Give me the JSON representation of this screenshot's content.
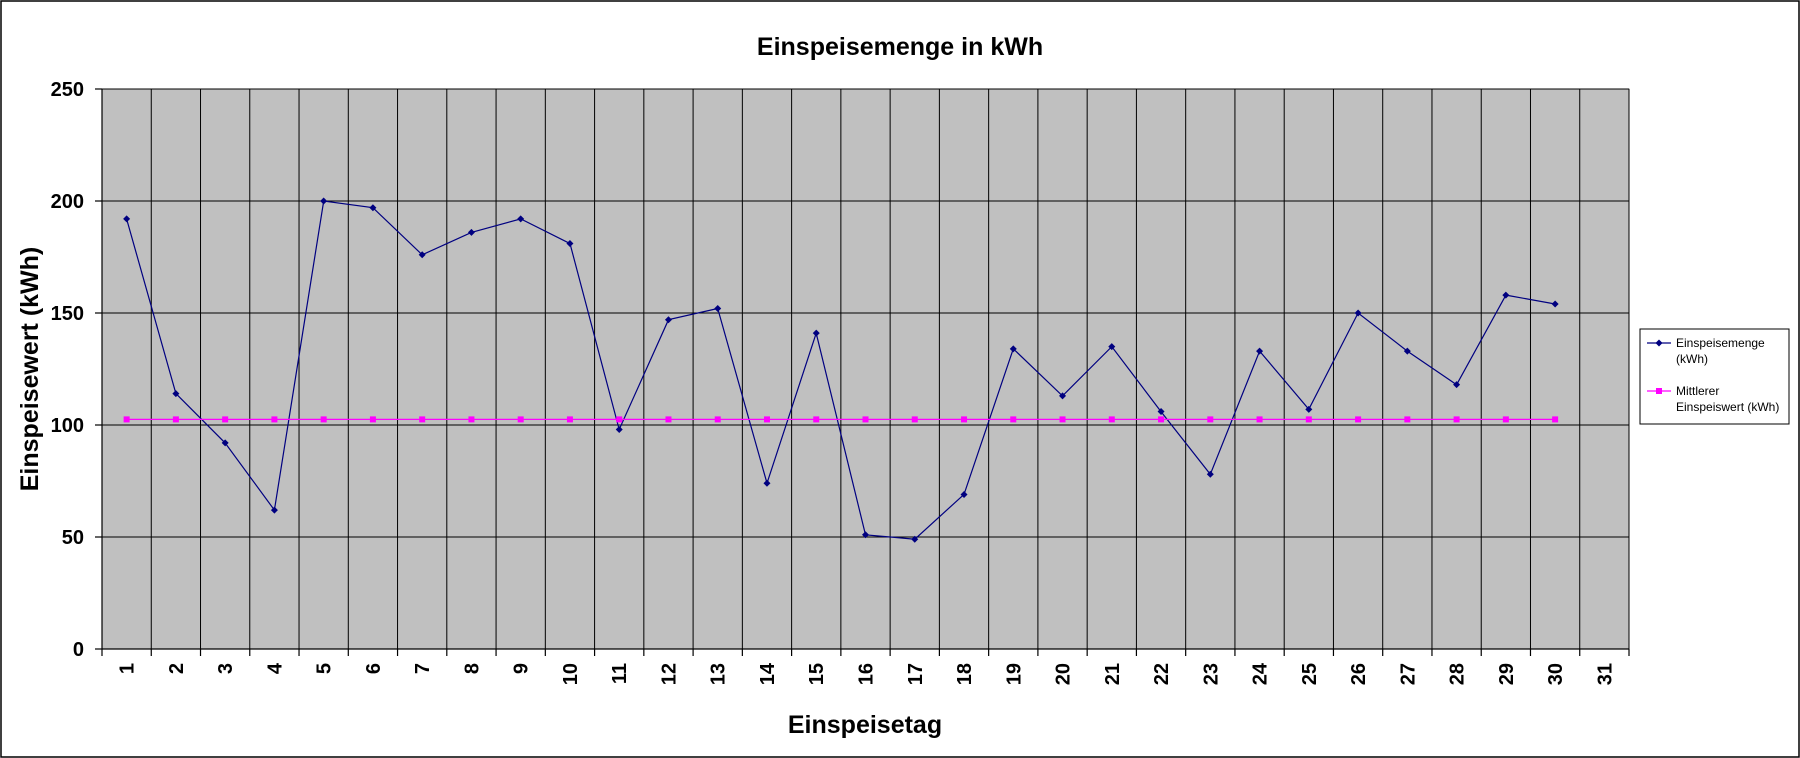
{
  "chart_data": {
    "type": "line",
    "title": "Einspeisemenge in kWh",
    "xlabel": "Einspeisetag",
    "ylabel": "Einspeisewert  (kWh)",
    "categories": [
      "1",
      "2",
      "3",
      "4",
      "5",
      "6",
      "7",
      "8",
      "9",
      "10",
      "11",
      "12",
      "13",
      "14",
      "15",
      "16",
      "17",
      "18",
      "19",
      "20",
      "21",
      "22",
      "23",
      "24",
      "25",
      "26",
      "27",
      "28",
      "29",
      "30",
      "31"
    ],
    "ylim": [
      0,
      250
    ],
    "yticks": [
      0,
      50,
      100,
      150,
      200,
      250
    ],
    "grid": true,
    "legend_position": "right",
    "series": [
      {
        "name": "Einspeisemenge (kWh)",
        "legend_lines": [
          "Einspeisemenge",
          "(kWh)"
        ],
        "color": "#000080",
        "marker": "diamond",
        "values": [
          192,
          114,
          92,
          62,
          200,
          197,
          176,
          186,
          192,
          181,
          98,
          147,
          152,
          74,
          141,
          51,
          49,
          69,
          134,
          113,
          135,
          106,
          78,
          133,
          107,
          150,
          133,
          118,
          158,
          154,
          null
        ]
      },
      {
        "name": "Mittlerer Einspeiswert (kWh)",
        "legend_lines": [
          "Mittlerer",
          "Einspeiswert (kWh)"
        ],
        "color": "#ff00ff",
        "marker": "square",
        "values": [
          102.5,
          102.5,
          102.5,
          102.5,
          102.5,
          102.5,
          102.5,
          102.5,
          102.5,
          102.5,
          102.5,
          102.5,
          102.5,
          102.5,
          102.5,
          102.5,
          102.5,
          102.5,
          102.5,
          102.5,
          102.5,
          102.5,
          102.5,
          102.5,
          102.5,
          102.5,
          102.5,
          102.5,
          102.5,
          102.5,
          null
        ]
      }
    ]
  }
}
